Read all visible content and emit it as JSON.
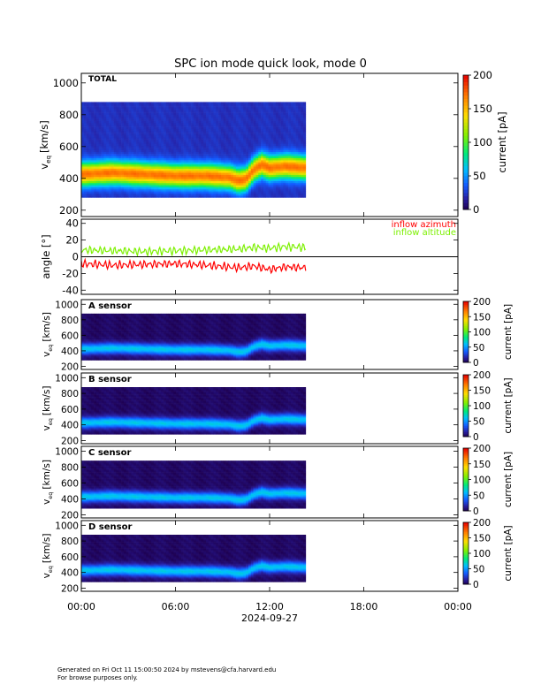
{
  "title": "SPC ion mode quick look, mode 0",
  "footer": {
    "line1": "Generated on Fri Oct 11 15:00:50 2024 by mstevens@cfa.harvard.edu",
    "line2": "For browse purposes only."
  },
  "colors": {
    "azimuth": "#ff0000",
    "altitude": "#7cf000"
  },
  "chart_data": {
    "type": "heatmap",
    "date": "2024-09-27",
    "x_ticks": [
      "00:00",
      "06:00",
      "12:00",
      "18:00",
      "00:00"
    ],
    "x_range_hours": [
      0,
      24
    ],
    "data_end_hour": 14.3,
    "panels": [
      {
        "id": "total",
        "type": "heatmap",
        "label": "TOTAL",
        "ylabel_main": "v",
        "ylabel_sub": "eq",
        "ylabel_unit": "[km/s]",
        "ylim": [
          160,
          1060
        ],
        "y_ticks": [
          "200",
          "400",
          "600",
          "800",
          "1000"
        ],
        "y_tick_values": [
          200,
          400,
          600,
          800,
          1000
        ],
        "colorbar": {
          "label": "current [pA]",
          "range": [
            0,
            200
          ],
          "ticks": [
            "0",
            "50",
            "100",
            "150",
            "200"
          ],
          "tick_values": [
            0,
            50,
            100,
            150,
            200
          ]
        },
        "peak_velocity_hours": [
          0,
          2,
          4,
          6,
          8,
          9.5,
          10,
          10.5,
          11,
          11.5,
          12,
          13,
          14.3
        ],
        "peak_velocity_values": [
          420,
          430,
          420,
          410,
          410,
          400,
          380,
          390,
          450,
          480,
          460,
          470,
          460
        ],
        "peak_current": 150
      },
      {
        "id": "angle",
        "type": "line",
        "ylabel_main": "angle [°]",
        "ylim": [
          -45,
          45
        ],
        "y_ticks": [
          "-40",
          "-20",
          "0",
          "20",
          "40"
        ],
        "y_tick_values": [
          -40,
          -20,
          0,
          20,
          40
        ],
        "series": [
          {
            "name": "inflow azimuth",
            "color": "#ff0000",
            "x": [
              0,
              2,
              4,
              6,
              8,
              10,
              11,
              12,
              13,
              14.3
            ],
            "values": [
              -5,
              -7,
              -6,
              -5,
              -7,
              -10,
              -8,
              -12,
              -9,
              -10
            ]
          },
          {
            "name": "inflow altitude",
            "color": "#7cf000",
            "x": [
              0,
              2,
              4,
              6,
              8,
              10,
              11,
              12,
              13,
              14.3
            ],
            "values": [
              5,
              4,
              3,
              4,
              5,
              6,
              8,
              7,
              9,
              8
            ]
          }
        ]
      },
      {
        "id": "a",
        "type": "heatmap",
        "label": "A sensor",
        "ylabel_main": "v",
        "ylabel_sub": "eq",
        "ylabel_unit": "[km/s]",
        "ylim": [
          160,
          1060
        ],
        "y_ticks": [
          "200",
          "400",
          "600",
          "800",
          "1000"
        ],
        "y_tick_values": [
          200,
          400,
          600,
          800,
          1000
        ],
        "colorbar": {
          "label": "current [pA]",
          "range": [
            0,
            200
          ],
          "ticks": [
            "0",
            "50",
            "100",
            "150",
            "200"
          ],
          "tick_values": [
            0,
            50,
            100,
            150,
            200
          ]
        },
        "peak_velocity_hours": [
          0,
          2,
          4,
          6,
          8,
          9.5,
          10,
          10.5,
          11,
          11.5,
          12,
          13,
          14.3
        ],
        "peak_velocity_values": [
          420,
          430,
          420,
          410,
          410,
          400,
          380,
          390,
          450,
          480,
          460,
          470,
          460
        ],
        "peak_current": 60
      },
      {
        "id": "b",
        "type": "heatmap",
        "label": "B sensor",
        "ylabel_main": "v",
        "ylabel_sub": "eq",
        "ylabel_unit": "[km/s]",
        "ylim": [
          160,
          1060
        ],
        "y_ticks": [
          "200",
          "400",
          "600",
          "800",
          "1000"
        ],
        "y_tick_values": [
          200,
          400,
          600,
          800,
          1000
        ],
        "colorbar": {
          "label": "current [pA]",
          "range": [
            0,
            200
          ],
          "ticks": [
            "0",
            "50",
            "100",
            "150",
            "200"
          ],
          "tick_values": [
            0,
            50,
            100,
            150,
            200
          ]
        },
        "peak_velocity_hours": [
          0,
          2,
          4,
          6,
          8,
          9.5,
          10,
          10.5,
          11,
          11.5,
          12,
          13,
          14.3
        ],
        "peak_velocity_values": [
          420,
          430,
          420,
          410,
          410,
          400,
          380,
          390,
          450,
          480,
          460,
          470,
          460
        ],
        "peak_current": 60
      },
      {
        "id": "c",
        "type": "heatmap",
        "label": "C sensor",
        "ylabel_main": "v",
        "ylabel_sub": "eq",
        "ylabel_unit": "[km/s]",
        "ylim": [
          160,
          1060
        ],
        "y_ticks": [
          "200",
          "400",
          "600",
          "800",
          "1000"
        ],
        "y_tick_values": [
          200,
          400,
          600,
          800,
          1000
        ],
        "colorbar": {
          "label": "current [pA]",
          "range": [
            0,
            200
          ],
          "ticks": [
            "0",
            "50",
            "100",
            "150",
            "200"
          ],
          "tick_values": [
            0,
            50,
            100,
            150,
            200
          ]
        },
        "peak_velocity_hours": [
          0,
          2,
          4,
          6,
          8,
          9.5,
          10,
          10.5,
          11,
          11.5,
          12,
          13,
          14.3
        ],
        "peak_velocity_values": [
          420,
          430,
          420,
          410,
          410,
          400,
          380,
          390,
          450,
          480,
          460,
          470,
          460
        ],
        "peak_current": 60
      },
      {
        "id": "d",
        "type": "heatmap",
        "label": "D sensor",
        "ylabel_main": "v",
        "ylabel_sub": "eq",
        "ylabel_unit": "[km/s]",
        "ylim": [
          160,
          1060
        ],
        "y_ticks": [
          "200",
          "400",
          "600",
          "800",
          "1000"
        ],
        "y_tick_values": [
          200,
          400,
          600,
          800,
          1000
        ],
        "colorbar": {
          "label": "current [pA]",
          "range": [
            0,
            200
          ],
          "ticks": [
            "0",
            "50",
            "100",
            "150",
            "200"
          ],
          "tick_values": [
            0,
            50,
            100,
            150,
            200
          ]
        },
        "peak_velocity_hours": [
          0,
          2,
          4,
          6,
          8,
          9.5,
          10,
          10.5,
          11,
          11.5,
          12,
          13,
          14.3
        ],
        "peak_velocity_values": [
          420,
          430,
          420,
          410,
          410,
          400,
          380,
          390,
          450,
          480,
          460,
          470,
          460
        ],
        "peak_current": 60
      }
    ]
  }
}
